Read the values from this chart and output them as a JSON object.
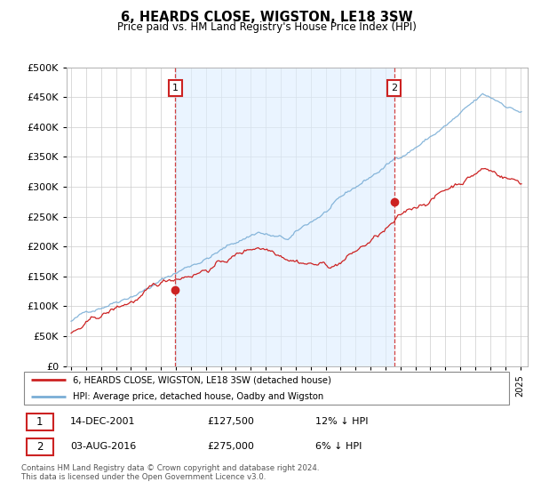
{
  "title": "6, HEARDS CLOSE, WIGSTON, LE18 3SW",
  "subtitle": "Price paid vs. HM Land Registry's House Price Index (HPI)",
  "ylim": [
    0,
    500000
  ],
  "yticks": [
    0,
    50000,
    100000,
    150000,
    200000,
    250000,
    300000,
    350000,
    400000,
    450000,
    500000
  ],
  "background_color": "#ffffff",
  "grid_color": "#cccccc",
  "hpi_line_color": "#7aaed6",
  "price_line_color": "#cc2222",
  "vline_color": "#cc2222",
  "shade_color": "#ddeeff",
  "transaction1_date": "14-DEC-2001",
  "transaction1_price": "£127,500",
  "transaction1_hpi": "12% ↓ HPI",
  "transaction2_date": "03-AUG-2016",
  "transaction2_price": "£275,000",
  "transaction2_hpi": "6% ↓ HPI",
  "tx1_x": 2001.96,
  "tx2_x": 2016.58,
  "tx1_y": 127500,
  "tx2_y": 275000,
  "legend_line1": "6, HEARDS CLOSE, WIGSTON, LE18 3SW (detached house)",
  "legend_line2": "HPI: Average price, detached house, Oadby and Wigston",
  "footer": "Contains HM Land Registry data © Crown copyright and database right 2024.\nThis data is licensed under the Open Government Licence v3.0.",
  "x_start": 1995.0,
  "x_end": 2025.2,
  "xlim_left": 1994.7,
  "xlim_right": 2025.5
}
